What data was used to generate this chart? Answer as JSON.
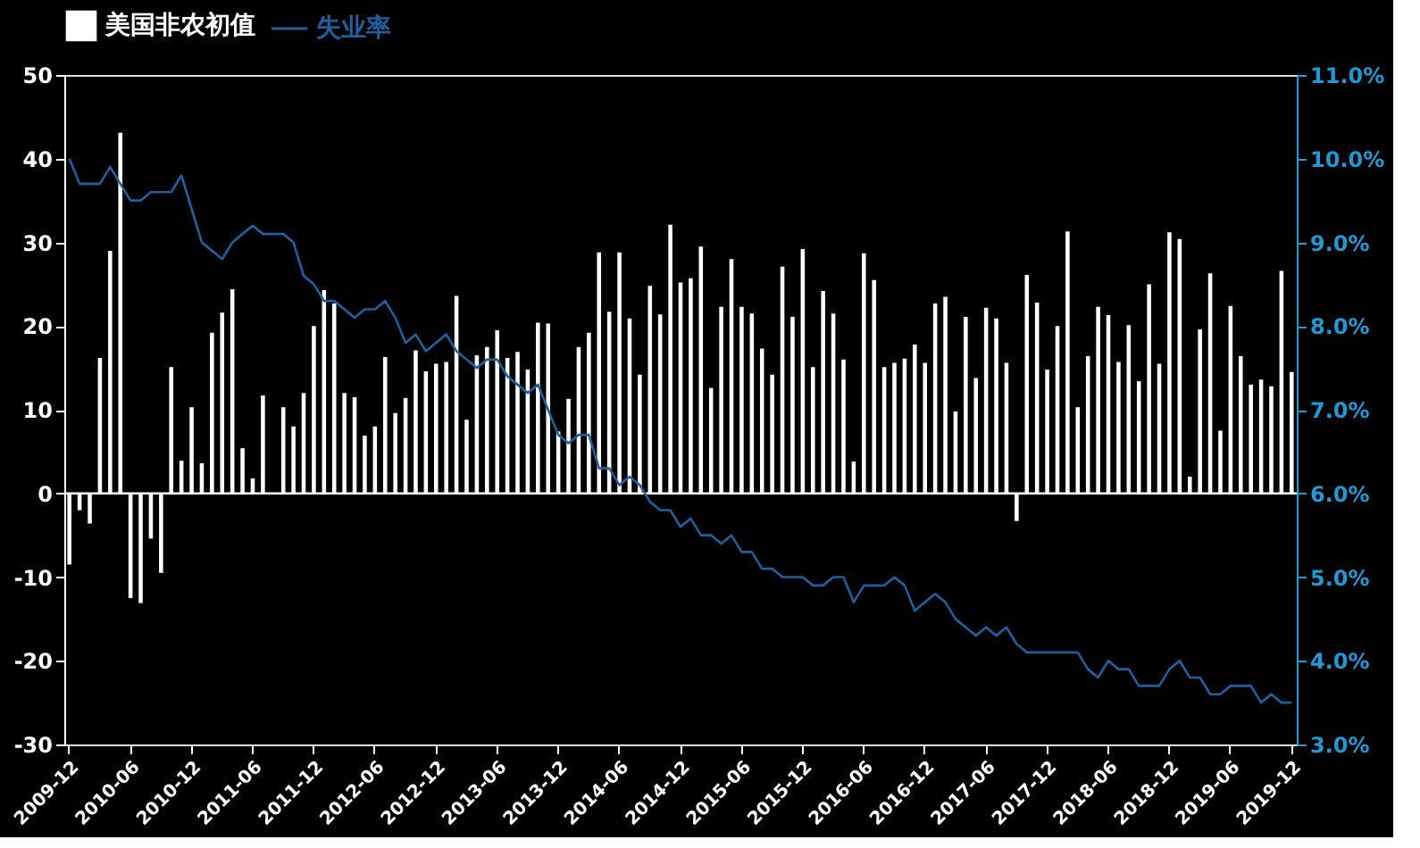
{
  "chart_data": {
    "type": "bar",
    "categories": [
      "2009-12",
      null,
      null,
      null,
      null,
      null,
      "2010-06",
      null,
      null,
      null,
      null,
      null,
      "2010-12",
      null,
      null,
      null,
      null,
      null,
      "2011-06",
      null,
      null,
      null,
      null,
      null,
      "2011-12",
      null,
      null,
      null,
      null,
      null,
      "2012-06",
      null,
      null,
      null,
      null,
      null,
      "2012-12",
      null,
      null,
      null,
      null,
      null,
      "2013-06",
      null,
      null,
      null,
      null,
      null,
      "2013-12",
      null,
      null,
      null,
      null,
      null,
      "2014-06",
      null,
      null,
      null,
      null,
      null,
      "2014-12",
      null,
      null,
      null,
      null,
      null,
      "2015-06",
      null,
      null,
      null,
      null,
      null,
      "2015-12",
      null,
      null,
      null,
      null,
      null,
      "2016-06",
      null,
      null,
      null,
      null,
      null,
      "2016-12",
      null,
      null,
      null,
      null,
      null,
      "2017-06",
      null,
      null,
      null,
      null,
      null,
      "2017-12",
      null,
      null,
      null,
      null,
      null,
      "2018-06",
      null,
      null,
      null,
      null,
      null,
      "2018-12",
      null,
      null,
      null,
      null,
      null,
      "2019-06",
      null,
      null,
      null,
      null,
      null,
      "2019-12"
    ],
    "series": [
      {
        "name": "美国非农初值",
        "color": "#ffffff",
        "values": [
          -8.5,
          -2.0,
          -3.6,
          16.2,
          29.0,
          43.1,
          -12.5,
          -13.1,
          -5.4,
          -9.5,
          15.1,
          3.9,
          10.3,
          3.6,
          19.2,
          21.6,
          24.4,
          5.4,
          1.8,
          11.7,
          0,
          10.3,
          8.0,
          12.0,
          20.0,
          24.3,
          22.7,
          12.0,
          11.5,
          6.9,
          8.0,
          16.3,
          9.6,
          11.4,
          17.1,
          14.6,
          15.5,
          15.7,
          23.6,
          8.8,
          16.5,
          17.5,
          19.5,
          16.2,
          16.9,
          14.8,
          20.4,
          20.3,
          7.4,
          11.3,
          17.5,
          19.2,
          28.8,
          21.7,
          28.8,
          20.9,
          14.2,
          24.8,
          21.4,
          32.1,
          25.2,
          25.7,
          29.5,
          12.6,
          22.3,
          28.0,
          22.3,
          21.5,
          17.3,
          14.2,
          27.1,
          21.1,
          29.2,
          15.1,
          24.2,
          21.5,
          16.0,
          3.8,
          28.7,
          25.5,
          15.1,
          15.6,
          16.1,
          17.8,
          15.6,
          22.7,
          23.5,
          9.8,
          21.1,
          13.8,
          22.2,
          20.9,
          15.6,
          -3.3,
          26.1,
          22.8,
          14.8,
          20.0,
          31.3,
          10.3,
          16.4,
          22.3,
          21.3,
          15.7,
          20.1,
          13.4,
          25.0,
          15.5,
          31.2,
          30.4,
          2.0,
          19.6,
          26.3,
          7.5,
          22.4,
          16.4,
          13.0,
          13.6,
          12.8,
          26.6,
          14.5
        ]
      },
      {
        "name": "失业率",
        "type": "line",
        "axis": "y2",
        "color": "#1f5f9e",
        "values": [
          10.0,
          9.7,
          9.7,
          9.7,
          9.9,
          9.7,
          9.5,
          9.5,
          9.6,
          9.6,
          9.6,
          9.8,
          9.4,
          9.0,
          8.9,
          8.8,
          9.0,
          9.1,
          9.2,
          9.1,
          9.1,
          9.1,
          9.0,
          8.6,
          8.5,
          8.3,
          8.3,
          8.2,
          8.1,
          8.2,
          8.2,
          8.3,
          8.1,
          7.8,
          7.9,
          7.7,
          7.8,
          7.9,
          7.7,
          7.6,
          7.5,
          7.6,
          7.6,
          7.4,
          7.3,
          7.2,
          7.3,
          7.0,
          6.7,
          6.6,
          6.7,
          6.7,
          6.3,
          6.3,
          6.1,
          6.2,
          6.1,
          5.9,
          5.8,
          5.8,
          5.6,
          5.7,
          5.5,
          5.5,
          5.4,
          5.5,
          5.3,
          5.3,
          5.1,
          5.1,
          5.0,
          5.0,
          5.0,
          4.9,
          4.9,
          5.0,
          5.0,
          4.7,
          4.9,
          4.9,
          4.9,
          5.0,
          4.9,
          4.6,
          4.7,
          4.8,
          4.7,
          4.5,
          4.4,
          4.3,
          4.4,
          4.3,
          4.4,
          4.2,
          4.1,
          4.1,
          4.1,
          4.1,
          4.1,
          4.1,
          3.9,
          3.8,
          4.0,
          3.9,
          3.9,
          3.7,
          3.7,
          3.7,
          3.9,
          4.0,
          3.8,
          3.8,
          3.6,
          3.6,
          3.7,
          3.7,
          3.7,
          3.5,
          3.6,
          3.5,
          3.5
        ]
      }
    ],
    "ylim": [
      -30,
      50
    ],
    "yticks": [
      -30,
      -20,
      -10,
      0,
      10,
      20,
      30,
      40,
      50
    ],
    "y2lim": [
      3,
      11
    ],
    "y2ticks": [
      {
        "value": 3,
        "label": "3.0%"
      },
      {
        "value": 4,
        "label": "4.0%"
      },
      {
        "value": 5,
        "label": "5.0%"
      },
      {
        "value": 6,
        "label": "6.0%"
      },
      {
        "value": 7,
        "label": "7.0%"
      },
      {
        "value": 8,
        "label": "8.0%"
      },
      {
        "value": 9,
        "label": "9.0%"
      },
      {
        "value": 10,
        "label": "10.0%"
      },
      {
        "value": 11,
        "label": "11.0%"
      }
    ],
    "ref_lines": [
      {
        "axis": "y",
        "value": 0,
        "color": "#ffffff"
      }
    ],
    "grid": false,
    "legend": "top",
    "marker": "none",
    "line_style": "solid"
  }
}
